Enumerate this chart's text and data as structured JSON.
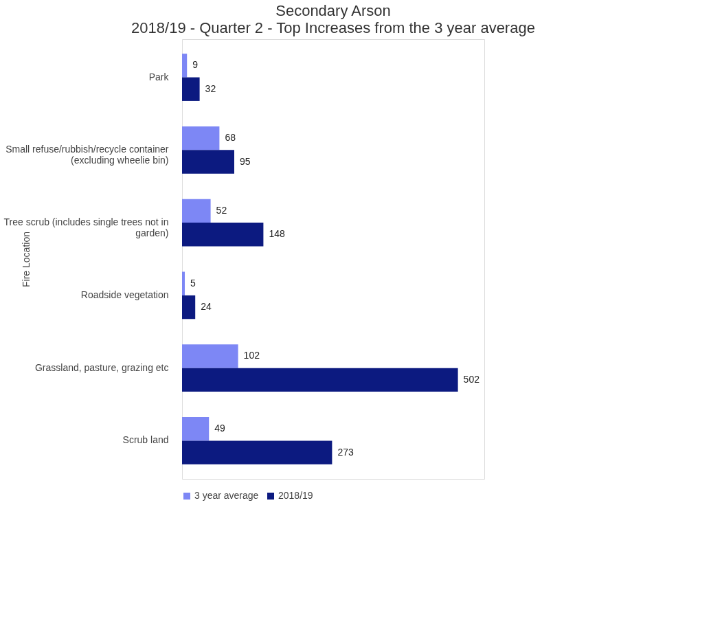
{
  "chart_data": {
    "type": "bar",
    "orientation": "horizontal",
    "title": "Secondary Arson",
    "subtitle": "2018/19 - Quarter 2 - Top Increases from the 3 year average",
    "ylabel": "Fire Location",
    "categories": [
      "Park",
      "Small refuse/rubbish/recycle container (excluding wheelie bin)",
      "Tree scrub (includes single trees not in garden)",
      "Roadside vegetation",
      "Grassland, pasture, grazing etc",
      "Scrub land"
    ],
    "series": [
      {
        "name": "3 year average",
        "color": "#7d87f5",
        "values": [
          9,
          68,
          52,
          5,
          102,
          49
        ]
      },
      {
        "name": "2018/19",
        "color": "#0c1a80",
        "values": [
          32,
          95,
          148,
          24,
          502,
          273
        ]
      }
    ],
    "data_labels": true,
    "tick_labels": "y",
    "legend": "bottom",
    "grid": false
  }
}
